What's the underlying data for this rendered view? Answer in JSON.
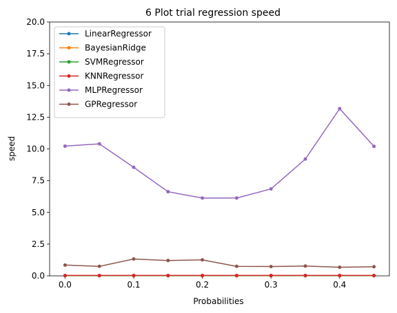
{
  "chart_data": {
    "type": "line",
    "title": "6 Plot trial regression speed",
    "xlabel": "Probabilities",
    "ylabel": "speed",
    "xlim": [
      -0.0225,
      0.4725
    ],
    "ylim": [
      0,
      20
    ],
    "x_ticks": [
      0.0,
      0.1,
      0.2,
      0.3,
      0.4
    ],
    "x_tick_labels": [
      "0.0",
      "0.1",
      "0.2",
      "0.3",
      "0.4"
    ],
    "y_ticks": [
      0,
      2.5,
      5,
      7.5,
      10,
      12.5,
      15,
      17.5,
      20
    ],
    "y_tick_labels": [
      "0.0",
      "2.5",
      "5.0",
      "7.5",
      "10.0",
      "12.5",
      "15.0",
      "17.5",
      "20.0"
    ],
    "grid": false,
    "legend_position": "upper-left",
    "x": [
      0.0,
      0.05,
      0.1,
      0.15,
      0.2,
      0.25,
      0.3,
      0.35,
      0.4,
      0.45
    ],
    "series": [
      {
        "name": "LinearRegressor",
        "color": "#1f77b4",
        "values": [
          0.01,
          0.01,
          0.01,
          0.01,
          0.01,
          0.01,
          0.01,
          0.01,
          0.01,
          0.01
        ]
      },
      {
        "name": "BayesianRidge",
        "color": "#ff7f0e",
        "values": [
          0.01,
          0.01,
          0.01,
          0.01,
          0.01,
          0.01,
          0.01,
          0.01,
          0.01,
          0.01
        ]
      },
      {
        "name": "SVMRegressor",
        "color": "#2ca02c",
        "values": [
          0.02,
          0.02,
          0.02,
          0.02,
          0.02,
          0.02,
          0.02,
          0.02,
          0.02,
          0.02
        ]
      },
      {
        "name": "KNNRegressor",
        "color": "#d62728",
        "values": [
          0.03,
          0.03,
          0.03,
          0.03,
          0.03,
          0.03,
          0.03,
          0.03,
          0.03,
          0.03
        ]
      },
      {
        "name": "MLPRegressor",
        "color": "#9467bd",
        "values": [
          10.22,
          10.4,
          8.55,
          6.63,
          6.13,
          6.13,
          6.85,
          9.2,
          13.17,
          10.2
        ]
      },
      {
        "name": "GPRegressor",
        "color": "#8c564b",
        "values": [
          0.85,
          0.75,
          1.33,
          1.21,
          1.26,
          0.75,
          0.73,
          0.77,
          0.68,
          0.72
        ]
      }
    ]
  }
}
